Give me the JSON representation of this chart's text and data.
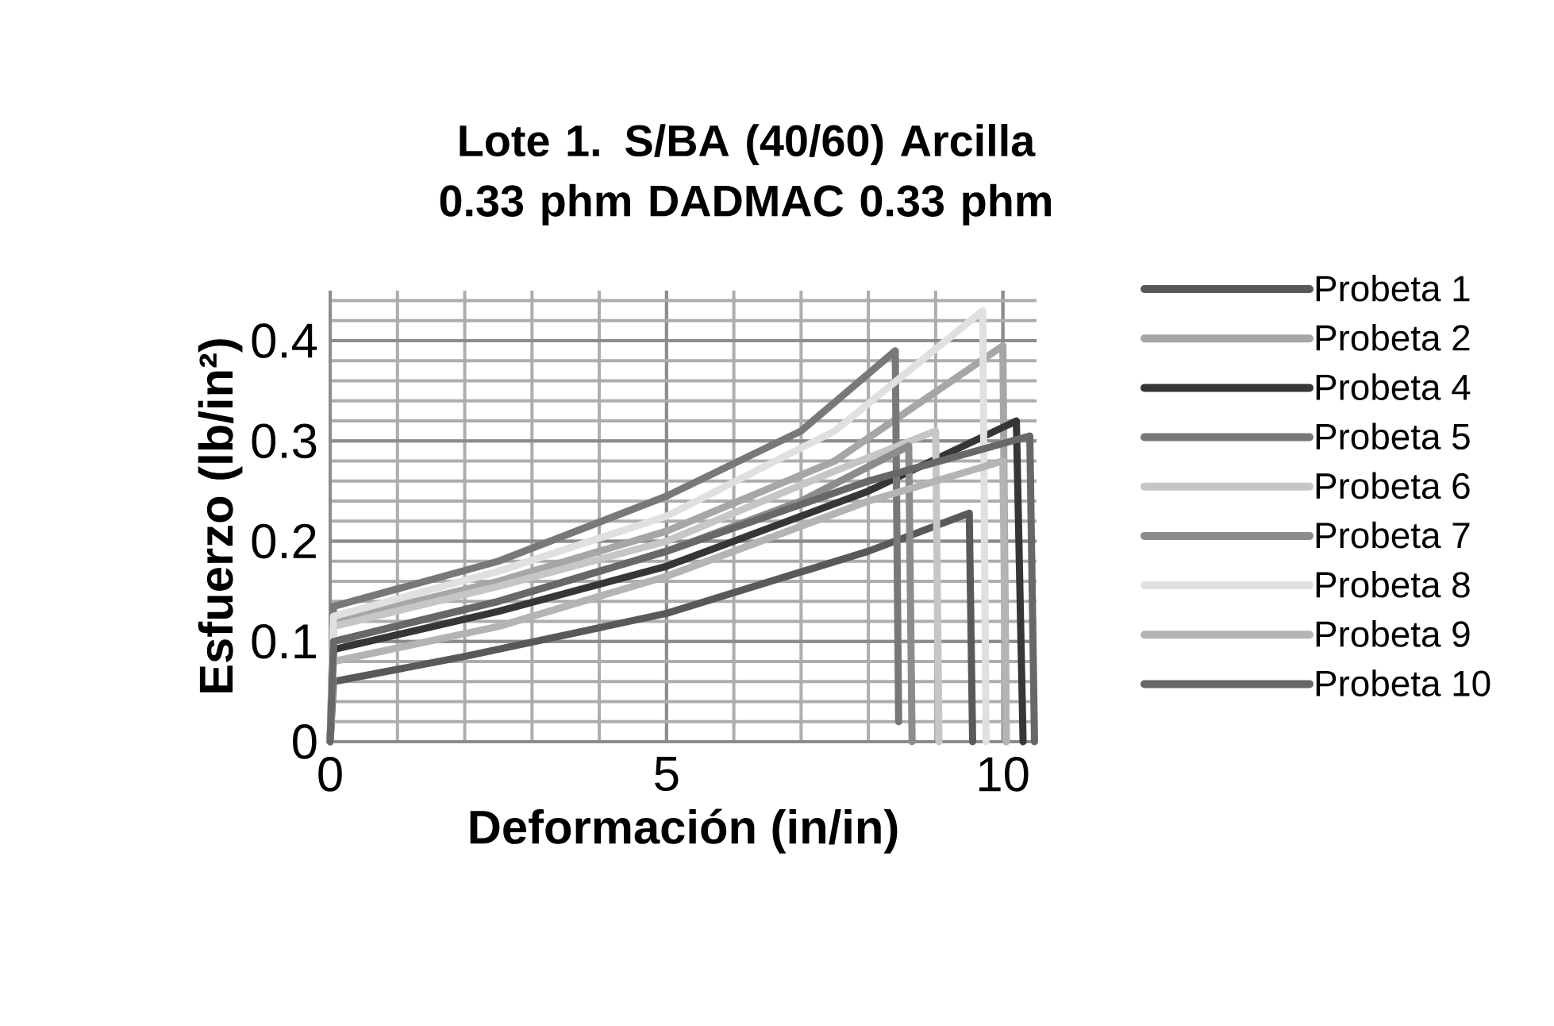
{
  "chart_data": {
    "type": "line",
    "title": "Lote 1. S/BA (40/60) Arcilla 0.33 phm  DADMAC 0.33 phm",
    "xlabel": "Deformación (in/in)",
    "ylabel": "Esfuerzo (lb/in²)",
    "xlim": [
      0,
      10.5
    ],
    "ylim": [
      0,
      0.45
    ],
    "xticks": [
      0,
      5,
      10
    ],
    "yticks": [
      0,
      0.1,
      0.2,
      0.3,
      0.4
    ],
    "grid": true,
    "legend": "right",
    "series": [
      {
        "name": "Probeta 1",
        "color": "#595959",
        "x": [
          0,
          0.05,
          2,
          5,
          8,
          9.5,
          9.55
        ],
        "values": [
          0,
          0.06,
          0.085,
          0.128,
          0.19,
          0.228,
          0
        ]
      },
      {
        "name": "Probeta 2",
        "color": "#a6a6a6",
        "x": [
          0,
          0.05,
          2.5,
          5,
          7.5,
          10,
          10.05
        ],
        "values": [
          0,
          0.12,
          0.16,
          0.21,
          0.28,
          0.395,
          0
        ]
      },
      {
        "name": "Probeta 4",
        "color": "#363636",
        "x": [
          0,
          0.05,
          2.5,
          5,
          8,
          10.2,
          10.3
        ],
        "values": [
          0,
          0.092,
          0.13,
          0.175,
          0.25,
          0.32,
          0
        ]
      },
      {
        "name": "Probeta 5",
        "color": "#787878",
        "x": [
          0,
          0.05,
          2.5,
          5,
          7,
          8.4,
          8.45
        ],
        "values": [
          0,
          0.135,
          0.18,
          0.245,
          0.31,
          0.39,
          0.02
        ]
      },
      {
        "name": "Probeta 6",
        "color": "#c6c6c6",
        "x": [
          0,
          0.05,
          2.5,
          5,
          7.5,
          9,
          9.05
        ],
        "values": [
          0,
          0.115,
          0.155,
          0.2,
          0.27,
          0.31,
          0
        ]
      },
      {
        "name": "Probeta 7",
        "color": "#8c8c8c",
        "x": [
          0,
          0.05,
          2.5,
          5,
          7,
          8.6,
          8.65
        ],
        "values": [
          0,
          0.1,
          0.14,
          0.19,
          0.24,
          0.295,
          0
        ]
      },
      {
        "name": "Probeta 8",
        "color": "#e0e0e0",
        "x": [
          0,
          0.05,
          2.5,
          5,
          7.5,
          9.7,
          9.75
        ],
        "values": [
          0,
          0.125,
          0.17,
          0.225,
          0.31,
          0.43,
          0
        ]
      },
      {
        "name": "Probeta 9",
        "color": "#b4b4b4",
        "x": [
          0,
          0.05,
          2.5,
          5,
          8,
          10,
          10.05
        ],
        "values": [
          0,
          0.08,
          0.115,
          0.165,
          0.24,
          0.28,
          0
        ]
      },
      {
        "name": "Probeta 10",
        "color": "#686868",
        "x": [
          0,
          0.05,
          2.5,
          5,
          8,
          10.4,
          10.47
        ],
        "values": [
          0,
          0.1,
          0.14,
          0.19,
          0.26,
          0.305,
          0
        ]
      }
    ]
  }
}
